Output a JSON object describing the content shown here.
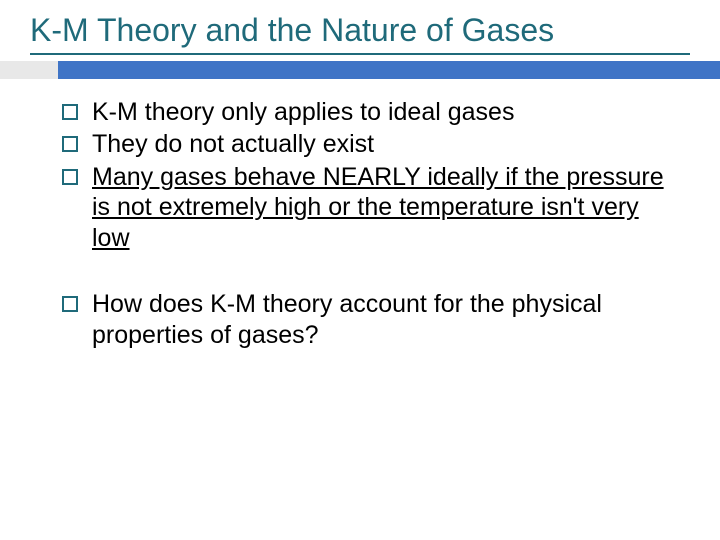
{
  "title": "K-M Theory and the Nature of Gases",
  "colors": {
    "title_color": "#1f6a7a",
    "accent_bar_left": "#e8e8e8",
    "accent_bar_right": "#3f74c6",
    "bullet_border": "#1f6a7a",
    "text_color": "#000000",
    "background": "#ffffff"
  },
  "typography": {
    "title_fontsize": 32,
    "body_fontsize": 25,
    "font_family": "Arial"
  },
  "bullets_group1": [
    {
      "text": "K-M theory only applies to ideal gases",
      "underline": false
    },
    {
      "text": "They do not actually exist",
      "underline": false
    },
    {
      "text": "Many gases behave NEARLY ideally if the pressure is not extremely high or the temperature isn't very low",
      "underline": true
    }
  ],
  "bullets_group2": [
    {
      "text": "How does K-M theory account for the physical properties of gases?",
      "underline": false
    }
  ]
}
